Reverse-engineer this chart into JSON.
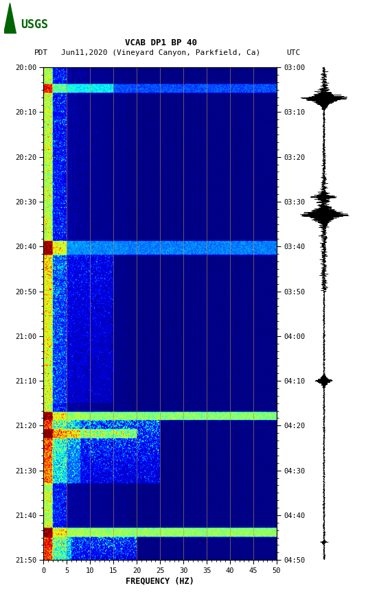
{
  "title_line1": "VCAB DP1 BP 40",
  "title_line2_pdt": "PDT",
  "title_line2_mid": "Jun11,2020 (Vineyard Canyon, Parkfield, Ca)",
  "title_line2_utc": "UTC",
  "xlabel": "FREQUENCY (HZ)",
  "xlim": [
    0,
    50
  ],
  "xticks": [
    0,
    5,
    10,
    15,
    20,
    25,
    30,
    35,
    40,
    45,
    50
  ],
  "left_yticks_labels": [
    "20:00",
    "20:10",
    "20:20",
    "20:30",
    "20:40",
    "20:50",
    "21:00",
    "21:10",
    "21:20",
    "21:30",
    "21:40",
    "21:50"
  ],
  "right_yticks_labels": [
    "03:00",
    "03:10",
    "03:20",
    "03:30",
    "03:40",
    "03:50",
    "04:00",
    "04:10",
    "04:20",
    "04:30",
    "04:40",
    "04:50"
  ],
  "n_time_steps": 600,
  "n_freq_steps": 500,
  "bg_color": "white",
  "spectrogram_cmap": "jet",
  "grid_color": "#b8904a",
  "grid_alpha": 0.6,
  "vertical_lines_freq": [
    5,
    10,
    15,
    20,
    25,
    30,
    35,
    40,
    45
  ],
  "usgs_color": "#006400",
  "seed": 42
}
